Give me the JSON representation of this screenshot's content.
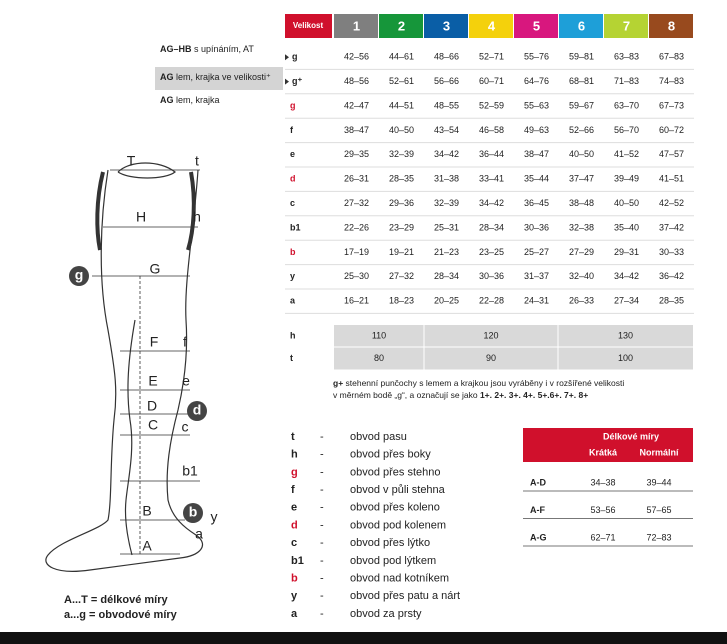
{
  "header": {
    "size_label": "Velikost",
    "sizes": [
      {
        "label": "1",
        "color": "#7f7f7f"
      },
      {
        "label": "2",
        "color": "#16963a"
      },
      {
        "label": "3",
        "color": "#0a5ea6"
      },
      {
        "label": "4",
        "color": "#f4d10c"
      },
      {
        "label": "5",
        "color": "#d8177e"
      },
      {
        "label": "6",
        "color": "#1e9fd8"
      },
      {
        "label": "7",
        "color": "#b5d333"
      },
      {
        "label": "8",
        "color": "#984a1e"
      }
    ],
    "size_label_color": "#d0102c"
  },
  "models": [
    {
      "bold": "AG–HB",
      "text": " s upínáním, AT"
    },
    {
      "bold": "AG",
      "text": " lem, krajka ve velikosti⁺"
    },
    {
      "bold": "AG",
      "text": " lem, krajka"
    }
  ],
  "table": {
    "rows": [
      {
        "label": "g",
        "cells": [
          "42–56",
          "44–61",
          "48–66",
          "52–71",
          "55–76",
          "59–81",
          "63–83",
          "67–83"
        ]
      },
      {
        "label": "g⁺",
        "cells": [
          "48–56",
          "52–61",
          "56–66",
          "60–71",
          "64–76",
          "68–81",
          "71–83",
          "74–83"
        ]
      },
      {
        "label": "g",
        "color": "#d0102c",
        "cells": [
          "42–47",
          "44–51",
          "48–55",
          "52–59",
          "55–63",
          "59–67",
          "63–70",
          "67–73"
        ]
      },
      {
        "label": "f",
        "cells": [
          "38–47",
          "40–50",
          "43–54",
          "46–58",
          "49–63",
          "52–66",
          "56–70",
          "60–72"
        ]
      },
      {
        "label": "e",
        "cells": [
          "29–35",
          "32–39",
          "34–42",
          "36–44",
          "38–47",
          "40–50",
          "41–52",
          "47–57"
        ]
      },
      {
        "label": "d",
        "color": "#d0102c",
        "cells": [
          "26–31",
          "28–35",
          "31–38",
          "33–41",
          "35–44",
          "37–47",
          "39–49",
          "41–51"
        ]
      },
      {
        "label": "c",
        "cells": [
          "27–32",
          "29–36",
          "32–39",
          "34–42",
          "36–45",
          "38–48",
          "40–50",
          "42–52"
        ]
      },
      {
        "label": "b1",
        "cells": [
          "22–26",
          "23–29",
          "25–31",
          "28–34",
          "30–36",
          "32–38",
          "35–40",
          "37–42"
        ]
      },
      {
        "label": "b",
        "color": "#d0102c",
        "cells": [
          "17–19",
          "19–21",
          "21–23",
          "23–25",
          "25–27",
          "27–29",
          "29–31",
          "30–33"
        ]
      },
      {
        "label": "y",
        "cells": [
          "25–30",
          "27–32",
          "28–34",
          "30–36",
          "31–37",
          "32–40",
          "34–42",
          "36–42"
        ]
      },
      {
        "label": "a",
        "cells": [
          "16–21",
          "18–23",
          "20–25",
          "22–28",
          "24–31",
          "26–33",
          "27–34",
          "28–35"
        ]
      }
    ]
  },
  "length_table": {
    "rows": [
      {
        "label": "h",
        "cells": [
          110,
          120,
          130
        ]
      },
      {
        "label": "t",
        "cells": [
          80,
          90,
          100
        ]
      }
    ]
  },
  "note": {
    "lead": "g+",
    "line1": " stehenní punčochy s lemem a krajkou jsou vyráběny i v rozšířené velikosti",
    "line2": "v měrném bodě „g“, a označují se jako ",
    "emphasis": "1+. 2+. 3+. 4+. 5+.6+. 7+. 8+"
  },
  "legend": {
    "dash": "-",
    "items": [
      {
        "key": "t",
        "text": "obvod pasu"
      },
      {
        "key": "h",
        "text": "obvod přes boky"
      },
      {
        "key": "g",
        "text": "obvod přes stehno",
        "color": "#d0102c"
      },
      {
        "key": "f",
        "text": "obvod v půli stehna"
      },
      {
        "key": "e",
        "text": "obvod přes koleno"
      },
      {
        "key": "d",
        "text": "obvod pod kolenem",
        "color": "#d0102c"
      },
      {
        "key": "c",
        "text": "obvod přes lýtko"
      },
      {
        "key": "b1",
        "text": "obvod pod lýtkem"
      },
      {
        "key": "b",
        "text": "obvod nad kotníkem",
        "color": "#d0102c"
      },
      {
        "key": "y",
        "text": "obvod přes patu a nárt"
      },
      {
        "key": "a",
        "text": "obvod za prsty"
      }
    ]
  },
  "lengths": {
    "title": "Délkové míry",
    "columns": [
      "Krátká",
      "Normální"
    ],
    "rows": [
      {
        "label": "A-D",
        "cells": [
          "34–38",
          "39–44"
        ]
      },
      {
        "label": "A-F",
        "cells": [
          "53–56",
          "57–65"
        ]
      },
      {
        "label": "A-G",
        "cells": [
          "62–71",
          "72–83"
        ]
      }
    ]
  },
  "diagram": {
    "labels": [
      "T",
      "t",
      "H",
      "h",
      "g",
      "G",
      "F",
      "f",
      "E",
      "e",
      "D",
      "d",
      "C",
      "c",
      "b1",
      "B",
      "b",
      "y",
      "A",
      "a"
    ],
    "caption1": "A...T = délkové míry",
    "caption2": "a...g = obvodové míry"
  }
}
